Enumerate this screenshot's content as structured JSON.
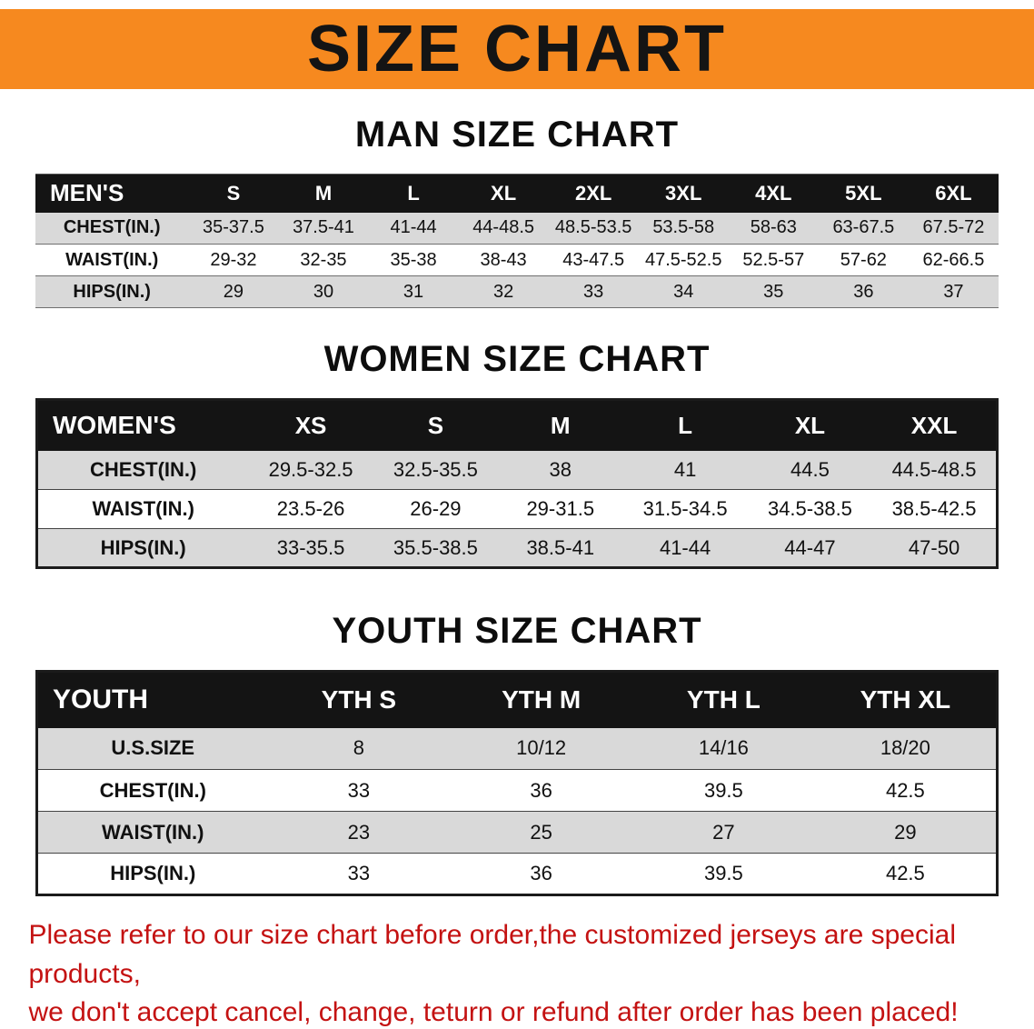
{
  "banner": {
    "title": "SIZE CHART",
    "bg_color": "#f6891f",
    "text_color": "#141414"
  },
  "sections": [
    {
      "heading": "MAN SIZE CHART",
      "table": {
        "header": [
          "MEN'S",
          "S",
          "M",
          "L",
          "XL",
          "2XL",
          "3XL",
          "4XL",
          "5XL",
          "6XL"
        ],
        "rows": [
          [
            "CHEST(IN.)",
            "35-37.5",
            "37.5-41",
            "41-44",
            "44-48.5",
            "48.5-53.5",
            "53.5-58",
            "58-63",
            "63-67.5",
            "67.5-72"
          ],
          [
            "WAIST(IN.)",
            "29-32",
            "32-35",
            "35-38",
            "38-43",
            "43-47.5",
            "47.5-52.5",
            "52.5-57",
            "57-62",
            "62-66.5"
          ],
          [
            "HIPS(IN.)",
            "29",
            "30",
            "31",
            "32",
            "33",
            "34",
            "35",
            "36",
            "37"
          ]
        ]
      }
    },
    {
      "heading": "WOMEN SIZE CHART",
      "table": {
        "header": [
          "WOMEN'S",
          "XS",
          "S",
          "M",
          "L",
          "XL",
          "XXL"
        ],
        "rows": [
          [
            "CHEST(IN.)",
            "29.5-32.5",
            "32.5-35.5",
            "38",
            "41",
            "44.5",
            "44.5-48.5"
          ],
          [
            "WAIST(IN.)",
            "23.5-26",
            "26-29",
            "29-31.5",
            "31.5-34.5",
            "34.5-38.5",
            "38.5-42.5"
          ],
          [
            "HIPS(IN.)",
            "33-35.5",
            "35.5-38.5",
            "38.5-41",
            "41-44",
            "44-47",
            "47-50"
          ]
        ]
      }
    },
    {
      "heading": "YOUTH SIZE CHART",
      "table": {
        "header": [
          "YOUTH",
          "YTH S",
          "YTH M",
          "YTH L",
          "YTH XL"
        ],
        "rows": [
          [
            "U.S.SIZE",
            "8",
            "10/12",
            "14/16",
            "18/20"
          ],
          [
            "CHEST(IN.)",
            "33",
            "36",
            "39.5",
            "42.5"
          ],
          [
            "WAIST(IN.)",
            "23",
            "25",
            "27",
            "29"
          ],
          [
            "HIPS(IN.)",
            "33",
            "36",
            "39.5",
            "42.5"
          ]
        ]
      }
    }
  ],
  "footnote": {
    "color": "#c41212",
    "lines": [
      "Please refer to our size chart before order,the customized jerseys are special products,",
      "we don't accept cancel, change, teturn or refund after order has been placed!"
    ]
  }
}
